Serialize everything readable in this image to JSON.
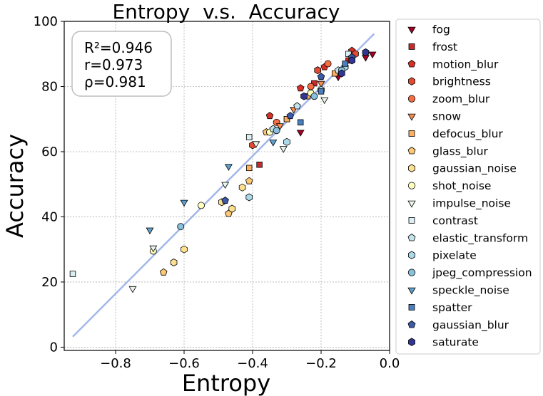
{
  "chart_data": {
    "type": "scatter",
    "title": "Entropy  v.s.  Accuracy",
    "xlabel": "Entropy",
    "ylabel": "Accuracy",
    "xlim": [
      -0.95,
      0.0
    ],
    "ylim": [
      -1,
      100
    ],
    "xticks": [
      -0.8,
      -0.6,
      -0.4,
      -0.2,
      0.0
    ],
    "xtick_labels": [
      "−0.8",
      "−0.6",
      "−0.4",
      "−0.2",
      "0.0"
    ],
    "yticks": [
      0,
      20,
      40,
      60,
      80,
      100
    ],
    "ytick_labels": [
      "0",
      "20",
      "40",
      "60",
      "80",
      "100"
    ],
    "grid": true,
    "legend_position": "outside-right",
    "stats": [
      "R²=0.946",
      "r=0.973",
      "ρ=0.981"
    ],
    "fit_line": {
      "x": [
        -0.925,
        -0.045
      ],
      "y": [
        3.2,
        96.2
      ],
      "color": "#a3b7ea"
    },
    "series": [
      {
        "name": "fog",
        "marker": "triangle-down",
        "color": "#a50026",
        "points": [
          [
            -0.26,
            66
          ],
          [
            -0.15,
            83
          ],
          [
            -0.07,
            89
          ],
          [
            -0.05,
            90
          ]
        ]
      },
      {
        "name": "frost",
        "marker": "square",
        "color": "#c62b2b",
        "points": [
          [
            -0.38,
            56
          ],
          [
            -0.3,
            70
          ],
          [
            -0.22,
            81
          ],
          [
            -0.12,
            88
          ]
        ]
      },
      {
        "name": "motion_blur",
        "marker": "pentagon",
        "color": "#d73027",
        "points": [
          [
            -0.35,
            71
          ],
          [
            -0.26,
            79.5
          ],
          [
            -0.19,
            86
          ],
          [
            -0.11,
            91
          ]
        ]
      },
      {
        "name": "brightness",
        "marker": "hexagon",
        "color": "#e34a33",
        "points": [
          [
            -0.4,
            62
          ],
          [
            -0.21,
            85
          ],
          [
            -0.1,
            90
          ]
        ]
      },
      {
        "name": "zoom_blur",
        "marker": "circle",
        "color": "#f46d43",
        "points": [
          [
            -0.33,
            69
          ],
          [
            -0.23,
            80
          ],
          [
            -0.18,
            87
          ]
        ]
      },
      {
        "name": "snow",
        "marker": "triangle-down",
        "color": "#f88d52",
        "points": [
          [
            -0.32,
            68
          ],
          [
            -0.28,
            73
          ],
          [
            -0.2,
            81
          ]
        ]
      },
      {
        "name": "defocus_blur",
        "marker": "square",
        "color": "#fdae61",
        "points": [
          [
            -0.41,
            55
          ],
          [
            -0.3,
            70
          ],
          [
            -0.24,
            77
          ],
          [
            -0.16,
            84
          ]
        ]
      },
      {
        "name": "glass_blur",
        "marker": "pentagon",
        "color": "#fdc874",
        "points": [
          [
            -0.66,
            23
          ],
          [
            -0.47,
            41
          ],
          [
            -0.41,
            51
          ],
          [
            -0.36,
            66
          ]
        ]
      },
      {
        "name": "gaussian_noise",
        "marker": "hexagon",
        "color": "#fee090",
        "points": [
          [
            -0.63,
            26
          ],
          [
            -0.6,
            30
          ],
          [
            -0.49,
            44.5
          ],
          [
            -0.46,
            42.5
          ],
          [
            -0.43,
            49
          ]
        ]
      },
      {
        "name": "shot_noise",
        "marker": "circle",
        "color": "#ffffbf",
        "points": [
          [
            -0.69,
            29.5
          ],
          [
            -0.55,
            43.5
          ],
          [
            -0.35,
            66
          ],
          [
            -0.23,
            78
          ]
        ]
      },
      {
        "name": "impulse_noise",
        "marker": "triangle-down",
        "color": "#e9f5e9",
        "points": [
          [
            -0.75,
            18
          ],
          [
            -0.69,
            30.5
          ],
          [
            -0.48,
            50
          ],
          [
            -0.39,
            62.5
          ],
          [
            -0.31,
            61
          ],
          [
            -0.19,
            76
          ]
        ]
      },
      {
        "name": "contrast",
        "marker": "square",
        "color": "#dbeef3",
        "points": [
          [
            -0.925,
            22.5
          ],
          [
            -0.41,
            64.5
          ],
          [
            -0.12,
            90
          ]
        ]
      },
      {
        "name": "elastic_transform",
        "marker": "pentagon",
        "color": "#c3e4ec",
        "points": [
          [
            -0.34,
            67
          ],
          [
            -0.27,
            74
          ],
          [
            -0.15,
            85
          ]
        ]
      },
      {
        "name": "pixelate",
        "marker": "hexagon",
        "color": "#abd9e9",
        "points": [
          [
            -0.41,
            46
          ],
          [
            -0.3,
            63
          ],
          [
            -0.2,
            79
          ],
          [
            -0.13,
            86
          ]
        ]
      },
      {
        "name": "jpeg_compression",
        "marker": "circle",
        "color": "#89c0da",
        "points": [
          [
            -0.61,
            37
          ],
          [
            -0.33,
            66.5
          ],
          [
            -0.22,
            77
          ],
          [
            -0.14,
            85
          ]
        ]
      },
      {
        "name": "speckle_noise",
        "marker": "triangle-down",
        "color": "#5fa1cc",
        "points": [
          [
            -0.7,
            36
          ],
          [
            -0.6,
            44.5
          ],
          [
            -0.47,
            55.5
          ],
          [
            -0.34,
            63
          ]
        ]
      },
      {
        "name": "spatter",
        "marker": "square",
        "color": "#4a80be",
        "points": [
          [
            -0.26,
            69
          ],
          [
            -0.2,
            78.5
          ],
          [
            -0.13,
            87
          ]
        ]
      },
      {
        "name": "gaussian_blur",
        "marker": "pentagon",
        "color": "#3b5aa8",
        "points": [
          [
            -0.48,
            45
          ],
          [
            -0.29,
            71
          ],
          [
            -0.2,
            83
          ],
          [
            -0.11,
            89
          ]
        ]
      },
      {
        "name": "saturate",
        "marker": "hexagon",
        "color": "#313695",
        "points": [
          [
            -0.25,
            77
          ],
          [
            -0.14,
            84
          ],
          [
            -0.07,
            90.5
          ],
          [
            -0.11,
            88
          ]
        ]
      }
    ]
  }
}
